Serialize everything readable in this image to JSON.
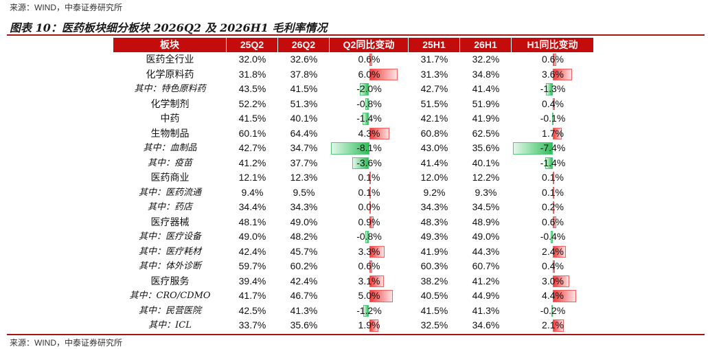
{
  "source_top": "来源：WIND，中泰证券研究所",
  "title": "图表 10：医药板块细分板块 2026Q2 及 2026H1 毛利率情况",
  "table": {
    "header": [
      "板块",
      "25Q2",
      "26Q2",
      "Q2同比变动",
      "25H1",
      "26H1",
      "H1同比变动"
    ],
    "bar_columns": [
      3,
      6
    ],
    "rows": [
      {
        "sub": false,
        "cells": [
          "医药全行业",
          "32.0%",
          "32.6%",
          "0.6%",
          "31.7%",
          "32.2%",
          "0.6%"
        ]
      },
      {
        "sub": false,
        "cells": [
          "化学原料药",
          "31.8%",
          "37.8%",
          "6.0%",
          "31.3%",
          "34.8%",
          "3.6%"
        ]
      },
      {
        "sub": true,
        "cells": [
          "其中：特色原料药",
          "43.5%",
          "41.5%",
          "-2.0%",
          "42.7%",
          "41.4%",
          "-1.3%"
        ]
      },
      {
        "sub": false,
        "cells": [
          "化学制剂",
          "52.2%",
          "51.3%",
          "-0.8%",
          "51.5%",
          "51.9%",
          "0.4%"
        ]
      },
      {
        "sub": false,
        "cells": [
          "中药",
          "41.5%",
          "40.1%",
          "-1.4%",
          "42.1%",
          "41.9%",
          "-0.1%"
        ]
      },
      {
        "sub": false,
        "cells": [
          "生物制品",
          "60.1%",
          "64.4%",
          "4.3%",
          "60.8%",
          "62.5%",
          "1.7%"
        ]
      },
      {
        "sub": true,
        "cells": [
          "其中：血制品",
          "42.7%",
          "34.7%",
          "-8.1%",
          "43.0%",
          "35.6%",
          "-7.4%"
        ]
      },
      {
        "sub": true,
        "cells": [
          "其中：疫苗",
          "41.2%",
          "37.7%",
          "-3.6%",
          "41.4%",
          "40.1%",
          "-1.4%"
        ]
      },
      {
        "sub": false,
        "cells": [
          "医药商业",
          "12.1%",
          "12.3%",
          "0.1%",
          "12.0%",
          "12.2%",
          "0.1%"
        ]
      },
      {
        "sub": true,
        "cells": [
          "其中：医药流通",
          "9.4%",
          "9.5%",
          "0.1%",
          "9.2%",
          "9.3%",
          "0.1%"
        ]
      },
      {
        "sub": true,
        "cells": [
          "其中：药店",
          "34.4%",
          "34.3%",
          "0.0%",
          "34.3%",
          "34.5%",
          "0.2%"
        ]
      },
      {
        "sub": false,
        "cells": [
          "医疗器械",
          "48.1%",
          "49.0%",
          "0.9%",
          "48.3%",
          "48.9%",
          "0.6%"
        ]
      },
      {
        "sub": true,
        "cells": [
          "其中：医疗设备",
          "49.0%",
          "48.2%",
          "-0.8%",
          "49.3%",
          "49.0%",
          "-0.4%"
        ]
      },
      {
        "sub": true,
        "cells": [
          "其中：医疗耗材",
          "42.4%",
          "45.7%",
          "3.3%",
          "41.9%",
          "44.3%",
          "2.4%"
        ]
      },
      {
        "sub": true,
        "cells": [
          "其中：体外诊断",
          "59.7%",
          "60.2%",
          "0.6%",
          "60.3%",
          "60.7%",
          "0.4%"
        ]
      },
      {
        "sub": false,
        "cells": [
          "医疗服务",
          "39.4%",
          "42.4%",
          "3.1%",
          "38.2%",
          "41.2%",
          "3.0%"
        ]
      },
      {
        "sub": true,
        "cells": [
          "其中：CRO/CDMO",
          "41.7%",
          "46.7%",
          "5.0%",
          "40.5%",
          "44.9%",
          "4.4%"
        ]
      },
      {
        "sub": true,
        "cells": [
          "其中：民营医院",
          "42.5%",
          "41.3%",
          "-1.2%",
          "41.5%",
          "41.3%",
          "-0.2%"
        ]
      },
      {
        "sub": true,
        "cells": [
          "其中：ICL",
          "33.7%",
          "35.6%",
          "1.9%",
          "32.5%",
          "34.6%",
          "2.1%"
        ]
      }
    ]
  },
  "source_bottom": "来源：WIND，中泰证券研究所"
}
